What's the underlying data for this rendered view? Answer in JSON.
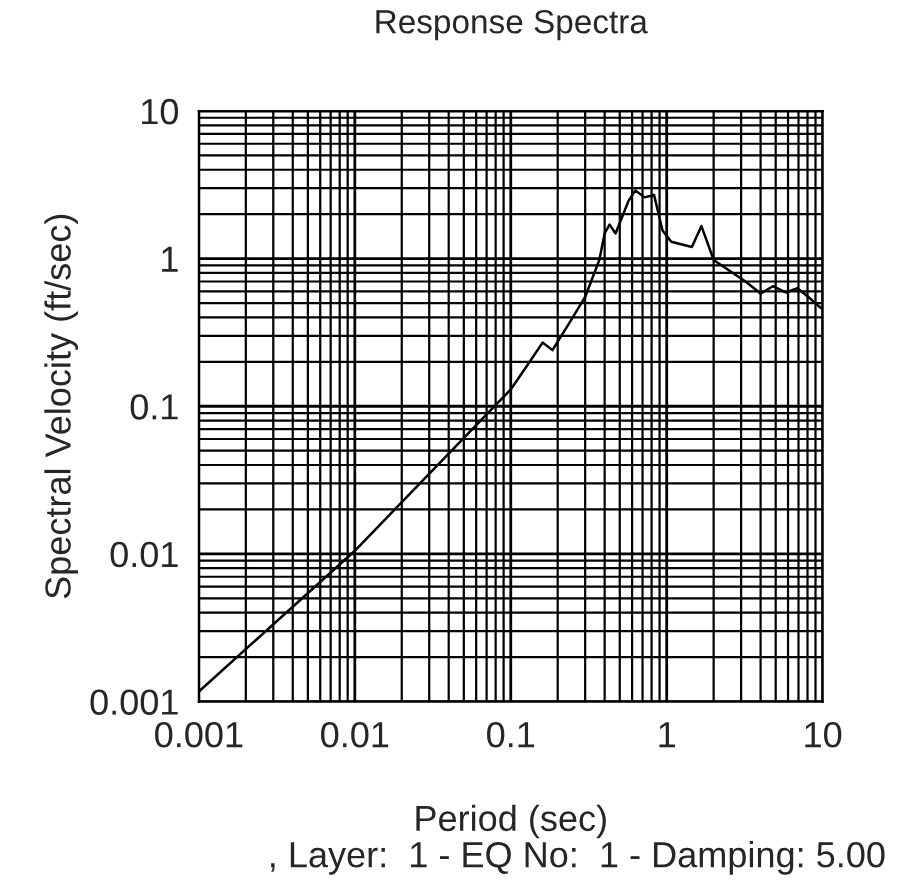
{
  "chart_data": {
    "type": "line",
    "title": "Response Spectra",
    "xlabel": "Period (sec)",
    "ylabel": "Spectral Velocity (ft/sec)",
    "annotations": [
      ", Layer:  1 - EQ No:  1 - Damping: 5.00"
    ],
    "log": "xy",
    "grid": true,
    "legend": false,
    "marker": "none",
    "line_style": "solid",
    "xlim": [
      0.001,
      10
    ],
    "ylim": [
      0.001,
      10
    ],
    "xticks": [
      0.001,
      0.01,
      0.1,
      1,
      10
    ],
    "yticks": [
      0.001,
      0.01,
      0.1,
      1,
      10
    ],
    "series": [
      {
        "color": "#000000",
        "x": [
          0.001,
          0.01,
          0.1,
          0.13,
          0.16,
          0.185,
          0.235,
          0.3,
          0.37,
          0.4,
          0.43,
          0.47,
          0.57,
          0.63,
          0.72,
          0.83,
          0.94,
          1.07,
          1.45,
          1.67,
          2.0,
          2.7,
          3.2,
          4.0,
          4.8,
          5.8,
          6.9,
          8.1,
          9.8
        ],
        "values": [
          0.00117,
          0.0105,
          0.13,
          0.195,
          0.27,
          0.24,
          0.36,
          0.55,
          0.98,
          1.48,
          1.7,
          1.48,
          2.47,
          2.9,
          2.6,
          2.7,
          1.55,
          1.3,
          1.2,
          1.66,
          0.98,
          0.79,
          0.7,
          0.58,
          0.65,
          0.59,
          0.63,
          0.55,
          0.46
        ]
      }
    ]
  }
}
